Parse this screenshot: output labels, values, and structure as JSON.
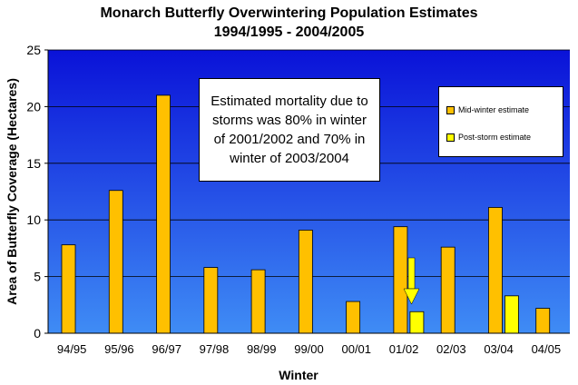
{
  "chart_data": {
    "type": "bar",
    "title": "Monarch Butterfly Overwintering Population Estimates",
    "subtitle": "1994/1995 - 2004/2005",
    "xlabel": "Winter",
    "ylabel": "Area of Butterfly Coverage (Hectares)",
    "ylim": [
      0,
      25
    ],
    "yticks": [
      "0",
      "5",
      "10",
      "15",
      "20",
      "25"
    ],
    "categories": [
      "94/95",
      "95/96",
      "96/97",
      "97/98",
      "98/99",
      "99/00",
      "00/01",
      "01/02",
      "02/03",
      "03/04",
      "04/05"
    ],
    "series": [
      {
        "name": "Mid-winter estimate",
        "color": "#ffc000",
        "values": [
          7.8,
          12.6,
          21.0,
          5.8,
          5.6,
          9.1,
          2.8,
          9.4,
          7.6,
          11.1,
          2.2
        ]
      },
      {
        "name": "Post-storm estimate",
        "color": "#ffff00",
        "values": [
          null,
          null,
          null,
          null,
          null,
          null,
          null,
          1.9,
          null,
          3.3,
          null
        ]
      }
    ],
    "annotation": "Estimated mortality due to storms was 80% in winter of 2001/2002 and 70% in winter of 2003/2004",
    "grid": true,
    "legend_position": "top-right"
  }
}
